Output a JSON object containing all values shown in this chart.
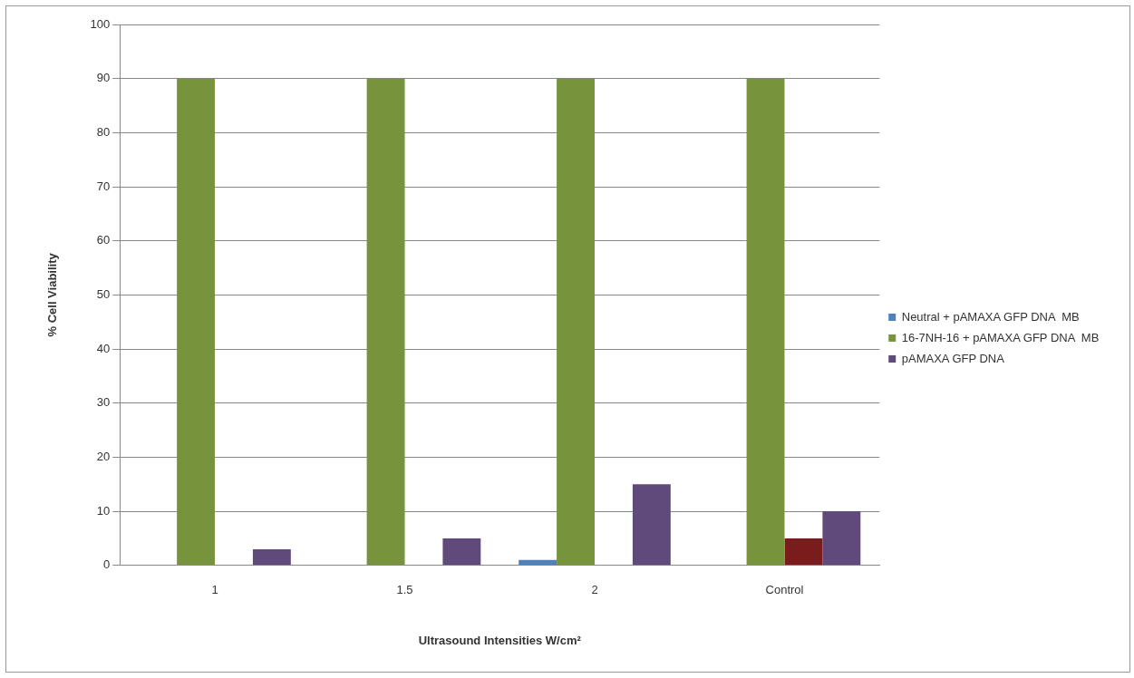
{
  "chart_data": {
    "type": "bar",
    "xlabel": "Ultrasound Intensities W/cm²",
    "ylabel": "% Cell Viability",
    "categories": [
      "1",
      "1.5",
      "2",
      "Control"
    ],
    "series": [
      {
        "name": "Neutral + pAMAXA GFP DNA  MB",
        "color": "#4f81bd",
        "values": [
          0,
          0,
          1,
          0
        ]
      },
      {
        "name": "16-7NH-16 + pAMAXA GFP DNA  MB",
        "color": "#77933c",
        "values": [
          90,
          90,
          90,
          90
        ]
      },
      {
        "color": "#7b1c1c",
        "values": [
          0,
          0,
          0,
          5
        ]
      },
      {
        "name": "pAMAXA GFP DNA",
        "color": "#604a7b",
        "values": [
          3,
          5,
          15,
          10
        ]
      }
    ],
    "ylim": [
      0,
      100
    ],
    "yticks": [
      0,
      10,
      20,
      30,
      40,
      50,
      60,
      70,
      80,
      90,
      100
    ],
    "grid": "y",
    "legend": "right"
  }
}
